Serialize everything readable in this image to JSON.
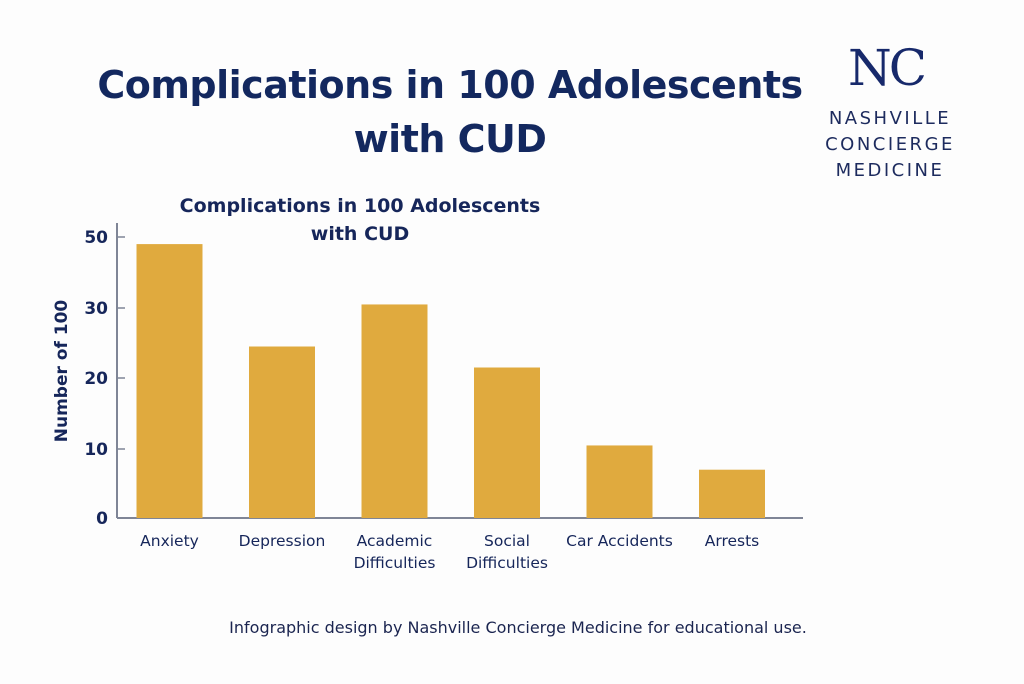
{
  "header": {
    "title_line1": "Complications in 100 Adolescents",
    "title_line2": "with CUD"
  },
  "logo": {
    "mark": "NC",
    "line1": "NASHVILLE",
    "line2": "CONCIERGE",
    "line3": "MEDICINE"
  },
  "footer": {
    "credit": "Infographic design by Nashville Concierge Medicine for educational use."
  },
  "colors": {
    "bar": "#e0aa3e",
    "text": "#16265a",
    "axis": "#7f8596"
  },
  "chart_data": {
    "type": "bar",
    "title": "Complications in 100 Adolescents with CUD",
    "title_lines": [
      "Complications in 100 Adolescents",
      "with CUD"
    ],
    "xlabel": "",
    "ylabel": "Number of 100",
    "categories": [
      {
        "lines": [
          "Anxiety"
        ]
      },
      {
        "lines": [
          "Depression"
        ]
      },
      {
        "lines": [
          "Academic",
          "Difficulties"
        ]
      },
      {
        "lines": [
          "Social",
          "Difficulties"
        ]
      },
      {
        "lines": [
          "Car Accidents"
        ]
      },
      {
        "lines": [
          "Arrests"
        ]
      }
    ],
    "category_names": [
      "Anxiety",
      "Depression",
      "Academic Difficulties",
      "Social Difficulties",
      "Car Accidents",
      "Arrests"
    ],
    "values": [
      48,
      24.5,
      31,
      21.5,
      10.5,
      7
    ],
    "yticks": [
      0,
      10,
      20,
      30,
      50
    ],
    "ylim": [
      0,
      50
    ],
    "grid": false,
    "legend": "none"
  }
}
